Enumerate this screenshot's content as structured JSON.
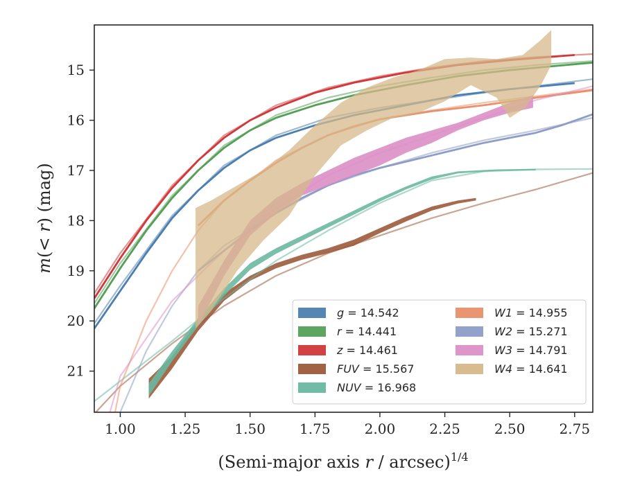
{
  "chart_data": {
    "type": "line",
    "xlabel_main": "(Semi-major axis ",
    "xlabel_var": "r",
    "xlabel_rest": " / arcsec)",
    "xlabel_sup": "1/4",
    "ylabel_pre": "m",
    "ylabel_mid": "(< ",
    "ylabel_var": "r",
    "ylabel_post": ") (mag)",
    "xlim": [
      0.9,
      2.82
    ],
    "ylim": [
      21.82,
      14.1
    ],
    "y_inverted": true,
    "x_ticks": [
      "1.00",
      "1.25",
      "1.50",
      "1.75",
      "2.00",
      "2.25",
      "2.50",
      "2.75"
    ],
    "x_tick_values": [
      1.0,
      1.25,
      1.5,
      1.75,
      2.0,
      2.25,
      2.5,
      2.75
    ],
    "y_ticks": [
      "15",
      "16",
      "17",
      "18",
      "19",
      "20",
      "21"
    ],
    "y_tick_values": [
      15,
      16,
      17,
      18,
      19,
      20,
      21
    ],
    "grid": false,
    "legend_position": "lower-right",
    "series": [
      {
        "name": "g = 14.542",
        "band": "g",
        "mag": "14.542",
        "color": "#4c7fb0",
        "observed": [
          [
            0.9,
            20.15
          ],
          [
            1.0,
            19.4
          ],
          [
            1.1,
            18.65
          ],
          [
            1.2,
            17.95
          ],
          [
            1.3,
            17.4
          ],
          [
            1.4,
            16.95
          ],
          [
            1.5,
            16.6
          ],
          [
            1.6,
            16.35
          ],
          [
            1.75,
            16.1
          ],
          [
            1.9,
            15.9
          ],
          [
            2.1,
            15.7
          ],
          [
            2.3,
            15.5
          ],
          [
            2.5,
            15.38
          ],
          [
            2.75,
            15.26
          ]
        ],
        "model": [
          [
            0.9,
            20.05
          ],
          [
            1.0,
            19.3
          ],
          [
            1.2,
            17.9
          ],
          [
            1.4,
            16.9
          ],
          [
            1.6,
            16.3
          ],
          [
            1.8,
            15.95
          ],
          [
            2.0,
            15.75
          ],
          [
            2.2,
            15.6
          ],
          [
            2.4,
            15.45
          ],
          [
            2.6,
            15.32
          ],
          [
            2.82,
            15.18
          ]
        ]
      },
      {
        "name": "r = 14.441",
        "band": "r",
        "mag": "14.441",
        "color": "#55a058",
        "observed": [
          [
            0.9,
            19.75
          ],
          [
            1.0,
            18.95
          ],
          [
            1.1,
            18.2
          ],
          [
            1.2,
            17.55
          ],
          [
            1.3,
            17.0
          ],
          [
            1.4,
            16.55
          ],
          [
            1.5,
            16.2
          ],
          [
            1.6,
            15.95
          ],
          [
            1.75,
            15.7
          ],
          [
            1.9,
            15.5
          ],
          [
            2.1,
            15.3
          ],
          [
            2.3,
            15.12
          ],
          [
            2.5,
            15.0
          ],
          [
            2.82,
            14.85
          ]
        ],
        "model": [
          [
            0.9,
            19.65
          ],
          [
            1.0,
            18.85
          ],
          [
            1.2,
            17.5
          ],
          [
            1.4,
            16.5
          ],
          [
            1.6,
            15.9
          ],
          [
            1.8,
            15.55
          ],
          [
            2.0,
            15.32
          ],
          [
            2.2,
            15.15
          ],
          [
            2.4,
            15.0
          ],
          [
            2.6,
            14.9
          ],
          [
            2.82,
            14.82
          ]
        ]
      },
      {
        "name": "z = 14.461",
        "band": "z",
        "mag": "14.461",
        "color": "#d0383b",
        "observed": [
          [
            0.9,
            19.55
          ],
          [
            1.0,
            18.75
          ],
          [
            1.1,
            18.0
          ],
          [
            1.2,
            17.35
          ],
          [
            1.3,
            16.8
          ],
          [
            1.4,
            16.35
          ],
          [
            1.5,
            16.0
          ],
          [
            1.6,
            15.75
          ],
          [
            1.75,
            15.45
          ],
          [
            1.9,
            15.25
          ],
          [
            2.1,
            15.05
          ],
          [
            2.3,
            14.9
          ],
          [
            2.5,
            14.8
          ],
          [
            2.75,
            14.7
          ]
        ],
        "model": [
          [
            0.9,
            19.45
          ],
          [
            1.0,
            18.65
          ],
          [
            1.2,
            17.3
          ],
          [
            1.4,
            16.3
          ],
          [
            1.6,
            15.7
          ],
          [
            1.8,
            15.35
          ],
          [
            2.0,
            15.12
          ],
          [
            2.2,
            14.95
          ],
          [
            2.4,
            14.82
          ],
          [
            2.6,
            14.74
          ],
          [
            2.82,
            14.68
          ]
        ]
      },
      {
        "name": "FUV = 15.567",
        "band": "FUV",
        "mag": "15.567",
        "color": "#9c5b3b",
        "observed_upper": [
          [
            1.11,
            21.15
          ],
          [
            1.2,
            20.7
          ],
          [
            1.3,
            20.0
          ],
          [
            1.4,
            19.45
          ],
          [
            1.5,
            19.1
          ],
          [
            1.6,
            18.85
          ],
          [
            1.7,
            18.68
          ],
          [
            1.8,
            18.55
          ],
          [
            1.9,
            18.38
          ],
          [
            2.0,
            18.15
          ],
          [
            2.1,
            17.92
          ],
          [
            2.2,
            17.72
          ],
          [
            2.3,
            17.6
          ],
          [
            2.37,
            17.55
          ]
        ],
        "observed_lower": [
          [
            1.11,
            21.55
          ],
          [
            1.2,
            20.95
          ],
          [
            1.3,
            20.2
          ],
          [
            1.4,
            19.6
          ],
          [
            1.5,
            19.2
          ],
          [
            1.6,
            18.95
          ],
          [
            1.7,
            18.78
          ],
          [
            1.8,
            18.65
          ],
          [
            1.9,
            18.5
          ],
          [
            2.0,
            18.25
          ],
          [
            2.1,
            18.02
          ],
          [
            2.2,
            17.8
          ],
          [
            2.3,
            17.66
          ],
          [
            2.37,
            17.6
          ]
        ],
        "model": [
          [
            0.9,
            21.85
          ],
          [
            1.0,
            21.3
          ],
          [
            1.2,
            20.45
          ],
          [
            1.4,
            19.7
          ],
          [
            1.6,
            19.1
          ],
          [
            1.8,
            18.65
          ],
          [
            2.0,
            18.3
          ],
          [
            2.2,
            17.95
          ],
          [
            2.4,
            17.65
          ],
          [
            2.6,
            17.38
          ],
          [
            2.82,
            17.05
          ]
        ]
      },
      {
        "name": "NUV = 16.968",
        "band": "NUV",
        "mag": "16.968",
        "color": "#6ab8a0",
        "observed_upper": [
          [
            1.11,
            21.25
          ],
          [
            1.2,
            20.6
          ],
          [
            1.3,
            19.95
          ],
          [
            1.4,
            19.35
          ],
          [
            1.5,
            18.85
          ],
          [
            1.6,
            18.55
          ],
          [
            1.7,
            18.3
          ],
          [
            1.8,
            18.05
          ],
          [
            1.9,
            17.8
          ],
          [
            2.0,
            17.55
          ],
          [
            2.1,
            17.32
          ],
          [
            2.2,
            17.12
          ],
          [
            2.3,
            17.02
          ],
          [
            2.45,
            16.98
          ],
          [
            2.6,
            16.97
          ]
        ],
        "observed_lower": [
          [
            1.11,
            21.5
          ],
          [
            1.2,
            20.8
          ],
          [
            1.3,
            20.1
          ],
          [
            1.4,
            19.5
          ],
          [
            1.5,
            18.98
          ],
          [
            1.6,
            18.66
          ],
          [
            1.7,
            18.4
          ],
          [
            1.8,
            18.14
          ],
          [
            1.9,
            17.88
          ],
          [
            2.0,
            17.62
          ],
          [
            2.1,
            17.38
          ],
          [
            2.2,
            17.18
          ],
          [
            2.3,
            17.06
          ],
          [
            2.45,
            17.01
          ],
          [
            2.6,
            17.0
          ]
        ],
        "model": [
          [
            0.9,
            21.6
          ],
          [
            1.0,
            21.2
          ],
          [
            1.2,
            20.4
          ],
          [
            1.4,
            19.55
          ],
          [
            1.6,
            18.8
          ],
          [
            1.8,
            18.2
          ],
          [
            2.0,
            17.65
          ],
          [
            2.2,
            17.2
          ],
          [
            2.4,
            17.02
          ],
          [
            2.6,
            16.98
          ],
          [
            2.82,
            16.97
          ]
        ]
      },
      {
        "name": "W1 = 14.955",
        "band": "W1",
        "mag": "14.955",
        "color": "#e98f6a",
        "observed": [
          [
            1.3,
            18.1
          ],
          [
            1.4,
            17.6
          ],
          [
            1.5,
            17.2
          ],
          [
            1.6,
            16.85
          ],
          [
            1.7,
            16.55
          ],
          [
            1.8,
            16.3
          ],
          [
            1.9,
            16.12
          ],
          [
            2.0,
            15.98
          ],
          [
            2.2,
            15.82
          ],
          [
            2.4,
            15.7
          ],
          [
            2.6,
            15.55
          ],
          [
            2.82,
            15.4
          ]
        ],
        "model": [
          [
            0.98,
            21.82
          ],
          [
            1.0,
            21.3
          ],
          [
            1.1,
            20.0
          ],
          [
            1.2,
            19.0
          ],
          [
            1.3,
            18.2
          ],
          [
            1.4,
            17.6
          ],
          [
            1.6,
            16.8
          ],
          [
            1.8,
            16.3
          ],
          [
            2.0,
            15.98
          ],
          [
            2.2,
            15.8
          ],
          [
            2.4,
            15.65
          ],
          [
            2.6,
            15.52
          ],
          [
            2.82,
            15.38
          ]
        ]
      },
      {
        "name": "W2 = 15.271",
        "band": "W2",
        "mag": "15.271",
        "color": "#8d9dc7",
        "observed": [
          [
            1.3,
            19.0
          ],
          [
            1.4,
            18.6
          ],
          [
            1.5,
            18.2
          ],
          [
            1.6,
            17.85
          ],
          [
            1.7,
            17.55
          ],
          [
            1.8,
            17.3
          ],
          [
            1.9,
            17.1
          ],
          [
            2.0,
            16.95
          ],
          [
            2.2,
            16.7
          ],
          [
            2.4,
            16.45
          ],
          [
            2.6,
            16.25
          ],
          [
            2.7,
            16.1
          ],
          [
            2.82,
            15.88
          ]
        ],
        "model": [
          [
            1.0,
            21.82
          ],
          [
            1.1,
            20.6
          ],
          [
            1.2,
            19.7
          ],
          [
            1.3,
            19.0
          ],
          [
            1.4,
            18.5
          ],
          [
            1.6,
            17.85
          ],
          [
            1.8,
            17.3
          ],
          [
            2.0,
            16.95
          ],
          [
            2.2,
            16.65
          ],
          [
            2.4,
            16.4
          ],
          [
            2.6,
            16.2
          ],
          [
            2.82,
            15.95
          ]
        ]
      },
      {
        "name": "W3 = 14.791",
        "band": "W3",
        "mag": "14.791",
        "color": "#dc8fc7",
        "observed_upper": [
          [
            1.3,
            19.7
          ],
          [
            1.4,
            18.8
          ],
          [
            1.5,
            18.0
          ],
          [
            1.6,
            17.55
          ],
          [
            1.7,
            17.25
          ],
          [
            1.8,
            17.0
          ],
          [
            1.9,
            16.75
          ],
          [
            2.0,
            16.55
          ],
          [
            2.1,
            16.35
          ],
          [
            2.2,
            16.2
          ],
          [
            2.3,
            16.05
          ],
          [
            2.4,
            15.85
          ],
          [
            2.5,
            15.65
          ],
          [
            2.59,
            15.5
          ]
        ],
        "observed_lower": [
          [
            1.3,
            20.1
          ],
          [
            1.4,
            19.1
          ],
          [
            1.5,
            18.3
          ],
          [
            1.6,
            17.85
          ],
          [
            1.7,
            17.5
          ],
          [
            1.8,
            17.3
          ],
          [
            1.9,
            17.1
          ],
          [
            2.0,
            16.9
          ],
          [
            2.1,
            16.65
          ],
          [
            2.2,
            16.45
          ],
          [
            2.3,
            16.2
          ],
          [
            2.4,
            16.0
          ],
          [
            2.5,
            15.85
          ],
          [
            2.59,
            15.75
          ]
        ],
        "model": [
          [
            0.96,
            21.82
          ],
          [
            1.0,
            21.1
          ],
          [
            1.2,
            19.6
          ],
          [
            1.4,
            18.6
          ],
          [
            1.6,
            17.75
          ],
          [
            1.8,
            17.1
          ],
          [
            2.0,
            16.65
          ],
          [
            2.2,
            16.3
          ],
          [
            2.4,
            15.95
          ],
          [
            2.6,
            15.6
          ],
          [
            2.82,
            15.32
          ]
        ]
      },
      {
        "name": "W4 = 14.641",
        "band": "W4",
        "mag": "14.641",
        "color": "#d6b889",
        "observed_upper": [
          [
            1.29,
            17.75
          ],
          [
            1.35,
            17.6
          ],
          [
            1.45,
            17.3
          ],
          [
            1.55,
            17.0
          ],
          [
            1.65,
            16.6
          ],
          [
            1.75,
            16.1
          ],
          [
            1.85,
            15.65
          ],
          [
            1.95,
            15.35
          ],
          [
            2.05,
            15.15
          ],
          [
            2.15,
            15.0
          ],
          [
            2.25,
            14.78
          ],
          [
            2.35,
            14.75
          ],
          [
            2.45,
            14.78
          ],
          [
            2.55,
            14.7
          ],
          [
            2.62,
            14.4
          ],
          [
            2.66,
            14.2
          ]
        ],
        "observed_lower": [
          [
            1.29,
            20.15
          ],
          [
            1.35,
            19.8
          ],
          [
            1.45,
            19.0
          ],
          [
            1.55,
            18.4
          ],
          [
            1.65,
            17.9
          ],
          [
            1.75,
            17.1
          ],
          [
            1.85,
            16.5
          ],
          [
            1.95,
            16.2
          ],
          [
            2.05,
            15.95
          ],
          [
            2.15,
            15.85
          ],
          [
            2.25,
            15.62
          ],
          [
            2.35,
            15.3
          ],
          [
            2.45,
            15.55
          ],
          [
            2.5,
            15.95
          ],
          [
            2.56,
            15.75
          ],
          [
            2.62,
            15.3
          ],
          [
            2.66,
            14.9
          ]
        ]
      }
    ]
  }
}
